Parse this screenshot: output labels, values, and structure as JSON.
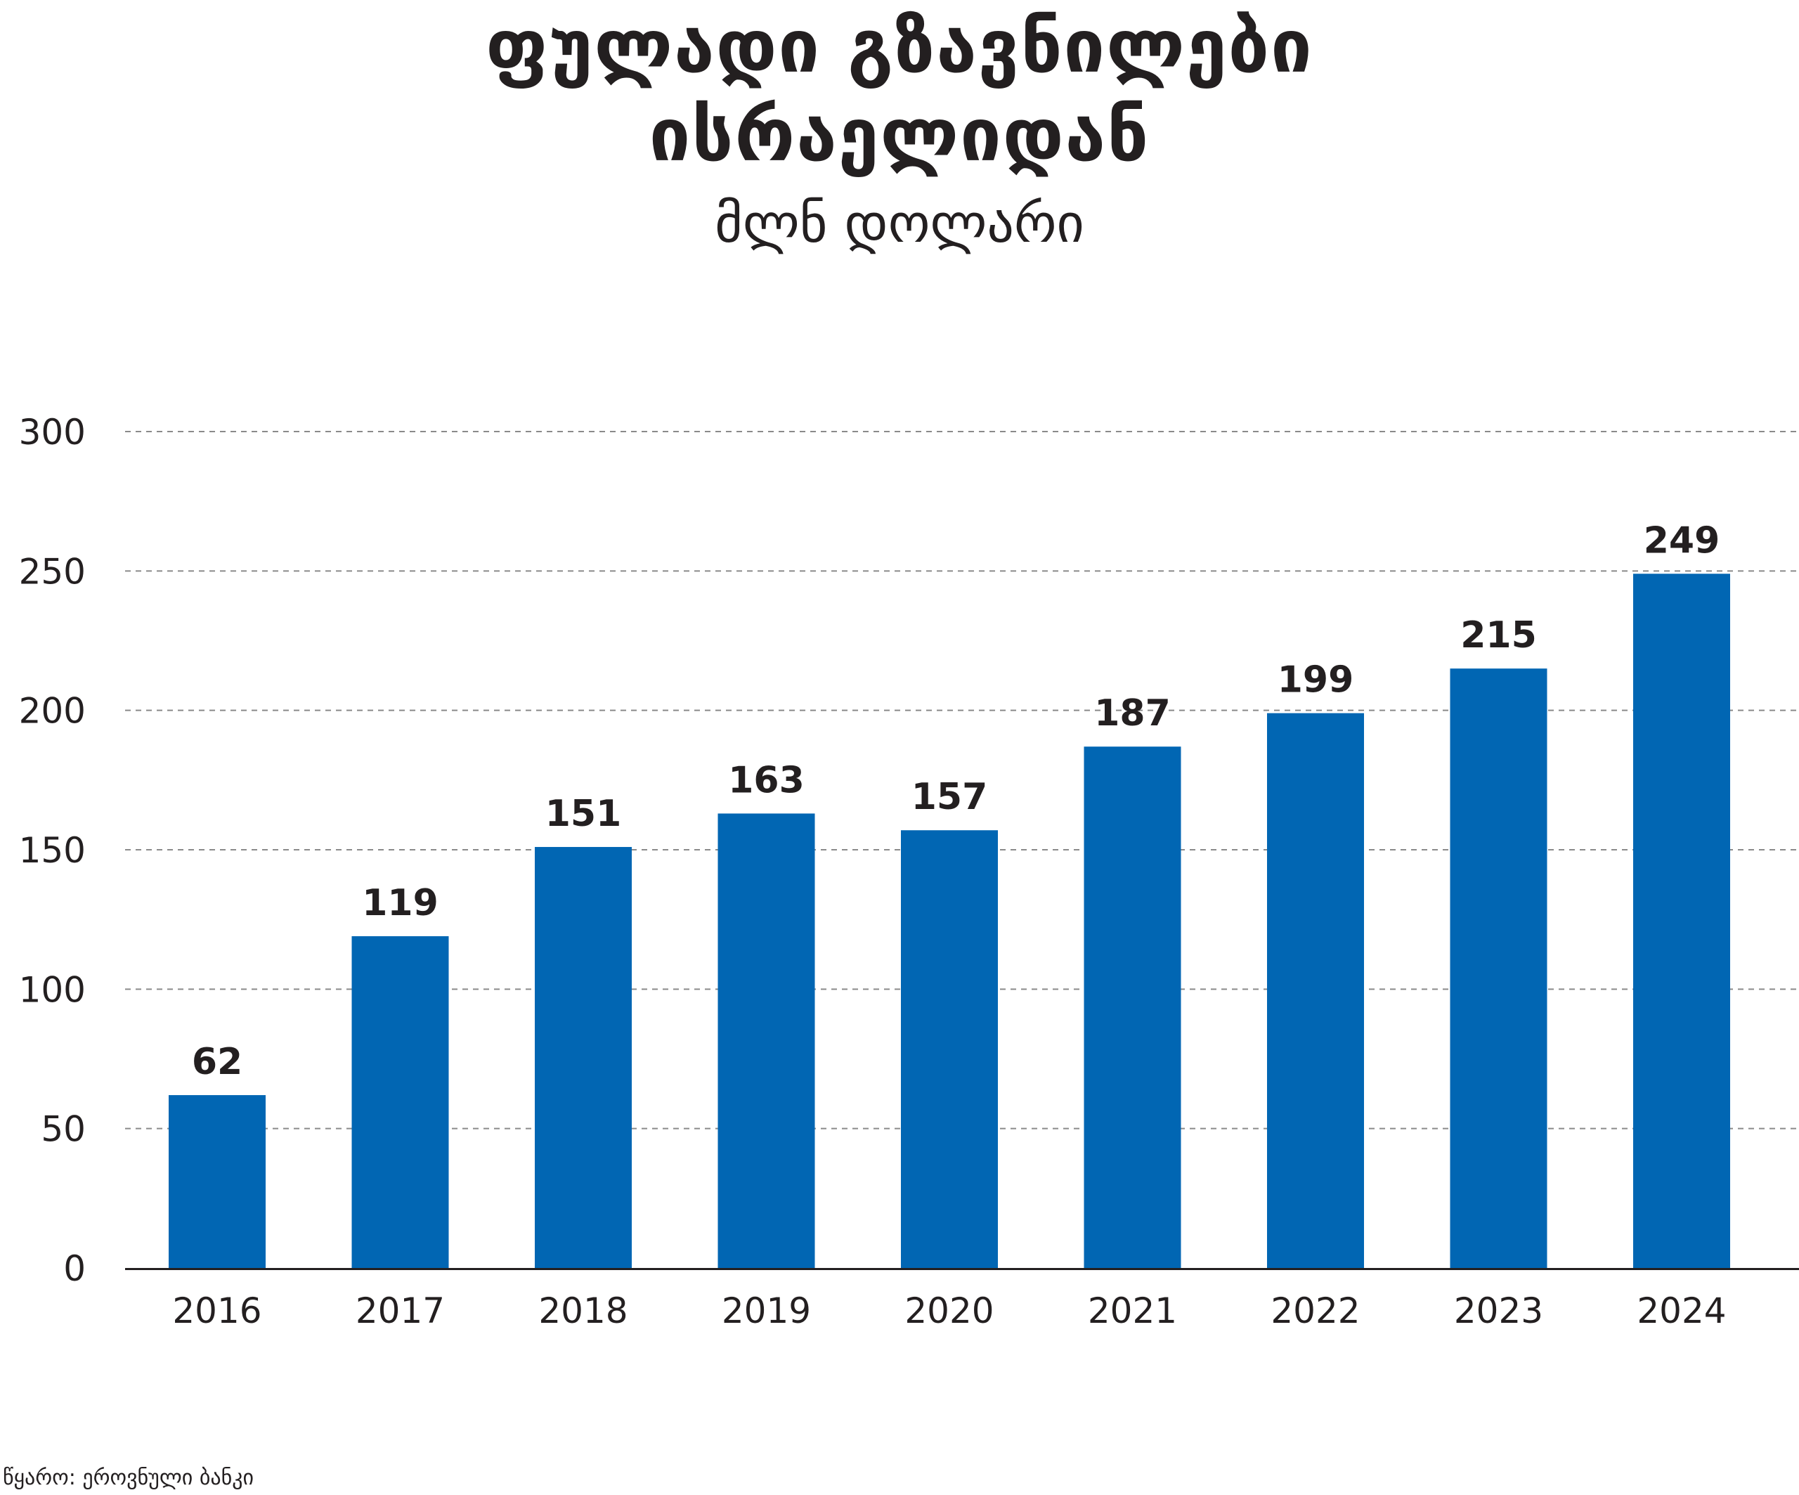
{
  "chart": {
    "title_line_1": "ფულადი გზავნილები",
    "title_line_2": "ისრაელიდან",
    "subtitle": "მლნ დოლარი",
    "source": "წყარო: ეროვნული ბანკი"
  },
  "colors": {
    "bar": "#0166b3",
    "text": "#231f20",
    "grid": "#8a8a8a",
    "axis": "#231f20"
  },
  "chart_data": {
    "type": "bar",
    "title": "ფულადი გზავნილები ისრაელიდან",
    "subtitle": "მლნ დოლარი",
    "categories": [
      "2016",
      "2017",
      "2018",
      "2019",
      "2020",
      "2021",
      "2022",
      "2023",
      "2024"
    ],
    "values": [
      62,
      119,
      151,
      163,
      157,
      187,
      199,
      215,
      249
    ],
    "data_labels": [
      "62",
      "119",
      "151",
      "163",
      "157",
      "187",
      "199",
      "215",
      "249"
    ],
    "xlabel": "",
    "ylabel": "",
    "ylim": [
      0,
      300
    ],
    "yticks": [
      0,
      50,
      100,
      150,
      200,
      250,
      300
    ],
    "ytick_labels": [
      "0",
      "50",
      "100",
      "150",
      "200",
      "250",
      "300"
    ],
    "grid": true,
    "grid_style": "dashed",
    "legend": false
  }
}
